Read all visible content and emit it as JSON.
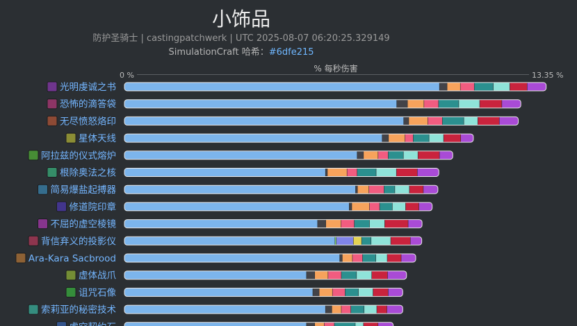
{
  "title": "小饰品",
  "subtitle": {
    "line1": "防护圣骑士 | castingpatchwerk | UTC 2025-08-07 06:20:25.329149",
    "line2_prefix": "SimulationCraft 哈希：",
    "line2_hash": "#6dfe215"
  },
  "colors": {
    "background": "#2b2f33",
    "base_bar": "#7cb5ec",
    "label": "#74b6ff",
    "segments": [
      "#434348",
      "#f7a35c",
      "#f15c80",
      "#2b908f",
      "#8fe3d9",
      "#c9233d",
      "#a94bd6"
    ],
    "alt_segments_row10": [
      "#90ed7d",
      "#8085e9",
      "#e4d354"
    ]
  },
  "chart_data": {
    "type": "bar",
    "orientation": "horizontal",
    "stacked": true,
    "xlabel": "% 每秒伤害",
    "xlim": [
      0,
      13.35
    ],
    "tick_labels": [
      "0 %",
      "13.35 %"
    ],
    "grid": false,
    "legend": "none",
    "categories": [
      "光明虔诚之书",
      "恐怖的滴答袋",
      "无尽愤怒烙印",
      "星体天线",
      "阿拉兹的仪式熔炉",
      "根除奥法之核",
      "简易爆盐起搏器",
      "修道院印章",
      "不屈的虚空棱镜",
      "背信弃义的投影仪",
      "Ara-Kara Sacbrood",
      "虚体战爪",
      "诅咒石像",
      "索莉亚的秘密技术",
      "虚空契约石"
    ],
    "icons": [
      "book-icon",
      "bag-icon",
      "brand-icon",
      "antenna-icon",
      "forge-icon",
      "arcane-core-icon",
      "pacemaker-icon",
      "seal-icon",
      "void-prism-icon",
      "projector-icon",
      "spider-icon",
      "claw-icon",
      "gargoyle-icon",
      "tech-icon",
      "void-stone-icon"
    ],
    "values": [
      [
        9.95,
        0.24,
        0.42,
        0.44,
        0.6,
        0.52,
        0.55,
        0.6
      ],
      [
        8.6,
        0.34,
        0.52,
        0.46,
        0.64,
        0.66,
        0.7,
        0.6
      ],
      [
        8.82,
        0.16,
        0.6,
        0.46,
        0.68,
        0.44,
        0.68,
        0.6
      ],
      [
        8.14,
        0.2,
        0.52,
        0.26,
        0.5,
        0.46,
        0.54,
        0.4
      ],
      [
        7.35,
        0.2,
        0.46,
        0.32,
        0.48,
        0.46,
        0.68,
        0.42
      ],
      [
        6.35,
        0.06,
        0.62,
        0.32,
        0.6,
        0.64,
        0.66,
        0.68
      ],
      [
        7.3,
        0.06,
        0.36,
        0.48,
        0.34,
        0.46,
        0.44,
        0.46
      ],
      [
        7.1,
        0.08,
        0.56,
        0.32,
        0.4,
        0.42,
        0.42,
        0.42
      ],
      [
        6.1,
        0.26,
        0.48,
        0.42,
        0.48,
        0.48,
        0.74,
        0.44
      ],
      [
        6.65,
        0.04,
        0.54,
        0.26,
        0.3,
        0.62,
        0.62,
        0.36
      ],
      [
        6.8,
        0.08,
        0.32,
        0.32,
        0.42,
        0.36,
        0.44,
        0.46
      ],
      [
        5.75,
        0.26,
        0.42,
        0.42,
        0.48,
        0.48,
        0.5,
        0.6
      ],
      [
        5.95,
        0.2,
        0.42,
        0.4,
        0.42,
        0.46,
        0.48,
        0.46
      ],
      [
        6.35,
        0.2,
        0.3,
        0.3,
        0.42,
        0.4,
        0.32,
        0.5
      ],
      [
        5.75,
        0.26,
        0.3,
        0.32,
        0.66,
        0.26,
        0.46,
        0.48
      ]
    ],
    "alt_color_rows": [
      9
    ]
  }
}
